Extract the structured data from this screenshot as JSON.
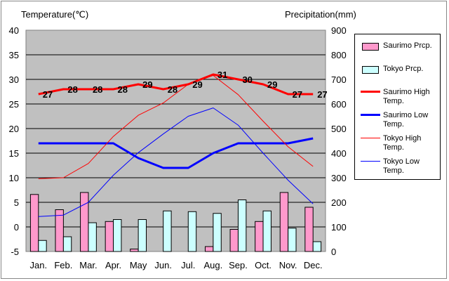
{
  "chart_data": {
    "type": "bar+line",
    "left_axis_title": "Temperature(℃)",
    "right_axis_title": "Precipitation(mm)",
    "categories": [
      "Jan.",
      "Feb.",
      "Mar.",
      "Apr.",
      "May",
      "Jun.",
      "Jul.",
      "Aug.",
      "Sep.",
      "Oct.",
      "Nov.",
      "Dec."
    ],
    "y_left": {
      "min": -5,
      "max": 40,
      "ticks": [
        "-5",
        "0",
        "5",
        "10",
        "15",
        "20",
        "25",
        "30",
        "35",
        "40"
      ]
    },
    "y_right": {
      "min": 0,
      "max": 900,
      "ticks": [
        "0",
        "100",
        "200",
        "300",
        "400",
        "500",
        "600",
        "700",
        "800",
        "900"
      ]
    },
    "grid": true,
    "legend_position": "right",
    "bar_series": [
      {
        "name": "Saurimo Prcp.",
        "color": "#ff99cc",
        "axis": "right",
        "values": [
          232,
          170,
          240,
          122,
          10,
          0,
          0,
          20,
          90,
          122,
          240,
          180
        ]
      },
      {
        "name": "Tokyo Prcp.",
        "color": "#ccffff",
        "axis": "right",
        "values": [
          45,
          60,
          117,
          130,
          130,
          165,
          162,
          155,
          210,
          165,
          95,
          40
        ]
      }
    ],
    "line_series": [
      {
        "name": "Saurimo High Temp.",
        "color": "#ff0000",
        "width": 3,
        "axis": "left",
        "values": [
          27,
          28,
          28,
          28,
          29,
          28,
          29,
          31,
          30,
          29,
          27,
          27
        ],
        "labels": [
          "27",
          "28",
          "28",
          "28",
          "29",
          "28",
          "29",
          "31",
          "30",
          "29",
          "27",
          "27"
        ]
      },
      {
        "name": "Saurimo Low Temp.",
        "color": "#0000ff",
        "width": 3,
        "axis": "left",
        "values": [
          17,
          17,
          17,
          17,
          14,
          12,
          12,
          15,
          17,
          17,
          17,
          18
        ]
      },
      {
        "name": "Tokyo High Temp.",
        "color": "#ff0000",
        "width": 1,
        "axis": "left",
        "values": [
          9.8,
          10.0,
          12.9,
          18.4,
          22.7,
          25.2,
          29.0,
          30.8,
          26.9,
          21.5,
          16.3,
          12.3
        ]
      },
      {
        "name": "Tokyo Low Temp.",
        "color": "#0000ff",
        "width": 1,
        "axis": "left",
        "values": [
          2.1,
          2.4,
          5.0,
          10.5,
          15.1,
          18.9,
          22.5,
          24.2,
          20.7,
          15.0,
          9.5,
          4.7
        ]
      }
    ]
  },
  "legend": {
    "items": [
      {
        "lines": [
          "Saurimo Prcp."
        ],
        "kind": "box",
        "color": "#ff99cc"
      },
      {
        "lines": [
          "Tokyo Prcp."
        ],
        "kind": "box",
        "color": "#ccffff"
      },
      {
        "lines": [
          "Saurimo High",
          "Temp."
        ],
        "kind": "line",
        "color": "#ff0000",
        "width": 3
      },
      {
        "lines": [
          "Saurimo Low",
          "Temp."
        ],
        "kind": "line",
        "color": "#0000ff",
        "width": 3
      },
      {
        "lines": [
          "Tokyo High",
          "Temp."
        ],
        "kind": "line",
        "color": "#ff0000",
        "width": 1
      },
      {
        "lines": [
          "Tokyo Low",
          "Temp."
        ],
        "kind": "line",
        "color": "#0000ff",
        "width": 1
      }
    ]
  }
}
